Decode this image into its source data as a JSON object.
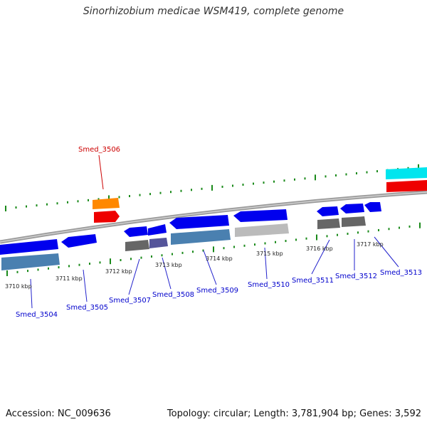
{
  "title": "Sinorhizobium medicae WSM419, complete genome",
  "footer": {
    "accession": "Accession: NC_009636",
    "topology": "Topology: circular; Length: 3,781,904 bp; Genes: 3,592"
  },
  "colors": {
    "tick_green": "#1a8a1a",
    "label_blue": "#0000cc",
    "label_red": "#cc0000",
    "backbone": "#888888"
  },
  "kbp_labels": [
    {
      "text": "3710 kbp"
    },
    {
      "text": "3711 kbp"
    },
    {
      "text": "3712 kbp"
    },
    {
      "text": "3713 kbp"
    },
    {
      "text": "3714 kbp"
    },
    {
      "text": "3715 kbp"
    },
    {
      "text": "3716 kbp"
    },
    {
      "text": "3717 kbp"
    }
  ],
  "gene_labels": [
    {
      "text": "Smed_3504"
    },
    {
      "text": "Smed_3505"
    },
    {
      "text": "Smed_3507"
    },
    {
      "text": "Smed_3508"
    },
    {
      "text": "Smed_3509"
    },
    {
      "text": "Smed_3510"
    },
    {
      "text": "Smed_3511"
    },
    {
      "text": "Smed_3512"
    },
    {
      "text": "Smed_3513"
    },
    {
      "text": "Smed_3506"
    }
  ]
}
